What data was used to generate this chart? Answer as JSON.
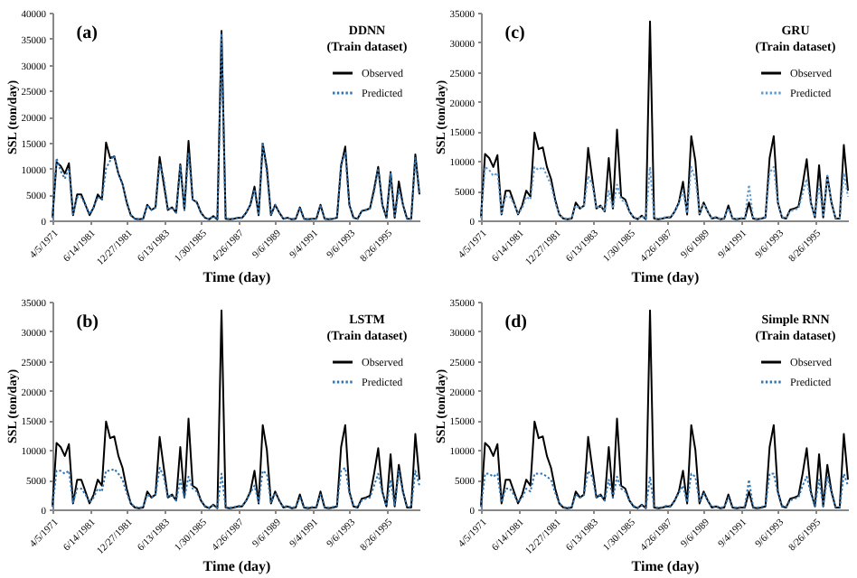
{
  "chart_data": [
    {
      "type": "line",
      "title": "(a)",
      "legend_title": "DDNN\n(Train dataset)",
      "xlabel": "Time (day)",
      "ylabel": "SSL (ton/day)",
      "legend": "top right",
      "ylim": [
        0,
        40000
      ],
      "yticks": [
        0,
        5000,
        10000,
        15000,
        20000,
        25000,
        30000,
        35000,
        40000
      ],
      "categories": [
        "4/5/1971",
        null,
        null,
        null,
        null,
        null,
        null,
        null,
        null,
        "6/14/1981",
        null,
        null,
        null,
        null,
        null,
        null,
        null,
        null,
        "12/27/1981",
        null,
        null,
        null,
        null,
        null,
        null,
        null,
        null,
        "6/13/1983",
        null,
        null,
        null,
        null,
        null,
        null,
        null,
        null,
        "1/30/1985",
        null,
        null,
        null,
        null,
        null,
        null,
        null,
        null,
        "4/26/1987",
        null,
        null,
        null,
        null,
        null,
        null,
        null,
        null,
        "9/6/1989",
        null,
        null,
        null,
        null,
        null,
        null,
        null,
        null,
        "9/4/1991",
        null,
        null,
        null,
        null,
        null,
        null,
        null,
        null,
        "9/6/1993",
        null,
        null,
        null,
        null,
        null,
        null,
        null,
        null,
        "8/26/1995",
        null,
        null,
        null,
        null,
        null,
        null,
        null,
        null
      ],
      "series": [
        {
          "name": "Observed",
          "color": "#000000",
          "line_style": "solid",
          "values": [
            500,
            11200,
            10500,
            9000,
            11000,
            1000,
            5000,
            5000,
            3000,
            1000,
            2500,
            5000,
            4000,
            15000,
            12000,
            12300,
            9000,
            7000,
            3500,
            1000,
            300,
            200,
            300,
            3000,
            2000,
            2500,
            12200,
            7000,
            2000,
            2500,
            1500,
            10800,
            2000,
            15300,
            4000,
            3500,
            1500,
            500,
            200,
            800,
            200,
            36500,
            300,
            200,
            300,
            500,
            500,
            1500,
            3000,
            6500,
            1000,
            14800,
            10000,
            1000,
            3000,
            1500,
            300,
            500,
            200,
            300,
            2500,
            300,
            200,
            300,
            300,
            3000,
            300,
            200,
            300,
            500,
            10500,
            14200,
            3000,
            500,
            300,
            1800,
            2000,
            2300,
            6000,
            10300,
            3000,
            500,
            9300,
            500,
            7500,
            3000,
            300,
            300,
            12700,
            5000
          ]
        },
        {
          "name": "Predicted",
          "color": "#2e75b6",
          "line_style": "dotted",
          "values": [
            500,
            12000,
            9500,
            8000,
            10000,
            1200,
            4500,
            4500,
            3000,
            1200,
            2500,
            4500,
            4000,
            10000,
            11500,
            12500,
            9000,
            7000,
            3500,
            1000,
            300,
            200,
            300,
            3000,
            2000,
            2500,
            11000,
            8000,
            2000,
            2500,
            1500,
            10500,
            2000,
            13000,
            4000,
            3500,
            1500,
            500,
            200,
            800,
            200,
            36000,
            300,
            200,
            300,
            500,
            500,
            1500,
            3000,
            6000,
            1000,
            15000,
            9000,
            1000,
            3000,
            1500,
            300,
            500,
            200,
            300,
            2500,
            300,
            200,
            300,
            300,
            3000,
            300,
            200,
            300,
            500,
            11000,
            13000,
            3000,
            500,
            300,
            1800,
            2000,
            2300,
            5500,
            10000,
            3000,
            500,
            9000,
            500,
            6000,
            3000,
            300,
            300,
            12000,
            5000
          ]
        }
      ]
    },
    {
      "type": "line",
      "title": "(c)",
      "legend_title": "GRU\n(Train dataset)",
      "xlabel": "Time (day)",
      "ylabel": "SSL (ton/day)",
      "legend": "top right",
      "ylim": [
        0,
        35000
      ],
      "yticks": [
        0,
        5000,
        10000,
        15000,
        20000,
        25000,
        30000,
        35000
      ],
      "categories": [
        "4/5/1971",
        null,
        null,
        null,
        null,
        null,
        null,
        null,
        null,
        "6/14/1981",
        null,
        null,
        null,
        null,
        null,
        null,
        null,
        null,
        "12/27/1981",
        null,
        null,
        null,
        null,
        null,
        null,
        null,
        null,
        "6/13/1983",
        null,
        null,
        null,
        null,
        null,
        null,
        null,
        null,
        "1/30/1985",
        null,
        null,
        null,
        null,
        null,
        null,
        null,
        null,
        "4/26/1987",
        null,
        null,
        null,
        null,
        null,
        null,
        null,
        null,
        "9/6/1989",
        null,
        null,
        null,
        null,
        null,
        null,
        null,
        null,
        "9/4/1991",
        null,
        null,
        null,
        null,
        null,
        null,
        null,
        null,
        "9/6/1993",
        null,
        null,
        null,
        null,
        null,
        null,
        null,
        null,
        "8/26/1995",
        null,
        null,
        null,
        null,
        null,
        null,
        null,
        null
      ],
      "series": [
        {
          "name": "Observed",
          "color": "#000000",
          "line_style": "solid",
          "values": [
            500,
            11200,
            10500,
            9000,
            11000,
            1000,
            5000,
            5000,
            3000,
            1000,
            2500,
            5000,
            4000,
            14800,
            12000,
            12300,
            9000,
            7000,
            3500,
            1000,
            300,
            200,
            300,
            3000,
            2000,
            2500,
            12200,
            7000,
            2000,
            2500,
            1500,
            10500,
            2000,
            15300,
            4000,
            3500,
            1500,
            500,
            200,
            800,
            200,
            33500,
            300,
            200,
            300,
            500,
            500,
            1500,
            3000,
            6500,
            1000,
            14200,
            10000,
            1000,
            3000,
            1500,
            300,
            500,
            200,
            300,
            2500,
            300,
            200,
            300,
            300,
            3000,
            300,
            200,
            300,
            500,
            10500,
            14200,
            3000,
            500,
            300,
            1800,
            2000,
            2300,
            6000,
            10300,
            3000,
            500,
            9300,
            500,
            7500,
            3000,
            300,
            300,
            12700,
            5000
          ]
        },
        {
          "name": "Predicted",
          "color": "#5b9bd5",
          "line_style": "dotted",
          "values": [
            400,
            9000,
            8500,
            7500,
            8000,
            1200,
            4000,
            4000,
            2800,
            1200,
            2000,
            4000,
            3500,
            9000,
            8500,
            9000,
            7500,
            6000,
            3000,
            1000,
            400,
            300,
            400,
            2500,
            2000,
            2500,
            7500,
            6000,
            2000,
            2500,
            1500,
            5000,
            2000,
            6000,
            3500,
            3000,
            1500,
            600,
            300,
            700,
            300,
            9000,
            400,
            300,
            400,
            600,
            600,
            1500,
            2800,
            5000,
            1200,
            9000,
            7000,
            1200,
            2800,
            1500,
            400,
            600,
            300,
            400,
            2000,
            400,
            300,
            400,
            400,
            6000,
            400,
            300,
            400,
            600,
            8000,
            9000,
            2800,
            600,
            400,
            1500,
            1800,
            2000,
            4500,
            7000,
            2800,
            600,
            6000,
            600,
            7500,
            2800,
            400,
            400,
            8000,
            4000
          ]
        }
      ]
    },
    {
      "type": "line",
      "title": "(b)",
      "legend_title": "LSTM\n(Train dataset)",
      "xlabel": "Time (day)",
      "ylabel": "SSL (ton/day)",
      "legend": "top right",
      "ylim": [
        0,
        35000
      ],
      "yticks": [
        0,
        5000,
        10000,
        15000,
        20000,
        25000,
        30000,
        35000
      ],
      "categories": [
        "4/5/1971",
        null,
        null,
        null,
        null,
        null,
        null,
        null,
        null,
        "6/14/1981",
        null,
        null,
        null,
        null,
        null,
        null,
        null,
        null,
        "12/27/1981",
        null,
        null,
        null,
        null,
        null,
        null,
        null,
        null,
        "6/13/1983",
        null,
        null,
        null,
        null,
        null,
        null,
        null,
        null,
        "1/30/1985",
        null,
        null,
        null,
        null,
        null,
        null,
        null,
        null,
        "4/26/1987",
        null,
        null,
        null,
        null,
        null,
        null,
        null,
        null,
        "9/6/1989",
        null,
        null,
        null,
        null,
        null,
        null,
        null,
        null,
        "9/4/1991",
        null,
        null,
        null,
        null,
        null,
        null,
        null,
        null,
        "9/6/1993",
        null,
        null,
        null,
        null,
        null,
        null,
        null,
        null,
        "8/26/1995",
        null,
        null,
        null,
        null,
        null,
        null,
        null,
        null
      ],
      "series": [
        {
          "name": "Observed",
          "color": "#000000",
          "line_style": "solid",
          "values": [
            500,
            11200,
            10500,
            9000,
            11000,
            1000,
            5000,
            5000,
            3000,
            1000,
            2500,
            5000,
            4000,
            14800,
            12000,
            12300,
            9000,
            7000,
            3500,
            1000,
            300,
            200,
            300,
            3000,
            2000,
            2500,
            12200,
            7000,
            2000,
            2500,
            1500,
            10500,
            2000,
            15300,
            4000,
            3500,
            1500,
            500,
            200,
            800,
            200,
            33500,
            300,
            200,
            300,
            500,
            500,
            1500,
            3000,
            6500,
            1000,
            14200,
            10000,
            1000,
            3000,
            1500,
            300,
            500,
            200,
            300,
            2500,
            300,
            200,
            300,
            300,
            3000,
            300,
            200,
            300,
            500,
            10500,
            14200,
            3000,
            500,
            300,
            1800,
            2000,
            2300,
            6000,
            10300,
            3000,
            500,
            9300,
            500,
            7500,
            3000,
            300,
            300,
            12700,
            5000
          ]
        },
        {
          "name": "Predicted",
          "color": "#2e75b6",
          "line_style": "dotted",
          "values": [
            400,
            6500,
            6500,
            6000,
            6500,
            1200,
            3500,
            3500,
            2500,
            1200,
            2000,
            3500,
            3000,
            6500,
            6500,
            6800,
            6000,
            5000,
            2800,
            1000,
            400,
            300,
            400,
            2500,
            2000,
            2500,
            7000,
            5500,
            2000,
            2500,
            1500,
            5000,
            2000,
            5500,
            3500,
            3000,
            1500,
            600,
            300,
            700,
            300,
            6000,
            400,
            300,
            400,
            600,
            600,
            1500,
            2800,
            4000,
            1200,
            6500,
            6000,
            1200,
            2800,
            1500,
            400,
            600,
            300,
            400,
            2000,
            400,
            300,
            400,
            400,
            2500,
            400,
            300,
            400,
            600,
            6500,
            7000,
            2800,
            600,
            400,
            1500,
            1800,
            2000,
            4000,
            6000,
            2800,
            600,
            5000,
            600,
            6500,
            2800,
            400,
            400,
            6500,
            4000
          ]
        }
      ]
    },
    {
      "type": "line",
      "title": "(d)",
      "legend_title": "Simple RNN\n(Train dataset)",
      "xlabel": "Time (day)",
      "ylabel": "SSL (ton/day)",
      "legend": "top right",
      "ylim": [
        0,
        35000
      ],
      "yticks": [
        0,
        5000,
        10000,
        15000,
        20000,
        25000,
        30000,
        35000
      ],
      "categories": [
        "4/5/1971",
        null,
        null,
        null,
        null,
        null,
        null,
        null,
        null,
        "6/14/1981",
        null,
        null,
        null,
        null,
        null,
        null,
        null,
        null,
        "12/27/1981",
        null,
        null,
        null,
        null,
        null,
        null,
        null,
        null,
        "6/13/1983",
        null,
        null,
        null,
        null,
        null,
        null,
        null,
        null,
        "1/30/1985",
        null,
        null,
        null,
        null,
        null,
        null,
        null,
        null,
        "4/26/1987",
        null,
        null,
        null,
        null,
        null,
        null,
        null,
        null,
        "9/6/1989",
        null,
        null,
        null,
        null,
        null,
        null,
        null,
        null,
        "9/4/1991",
        null,
        null,
        null,
        null,
        null,
        null,
        null,
        null,
        "9/6/1993",
        null,
        null,
        null,
        null,
        null,
        null,
        null,
        null,
        "8/26/1995",
        null,
        null,
        null,
        null,
        null,
        null,
        null,
        null
      ],
      "series": [
        {
          "name": "Observed",
          "color": "#000000",
          "line_style": "solid",
          "values": [
            500,
            11200,
            10500,
            9000,
            11000,
            1000,
            5000,
            5000,
            3000,
            1000,
            2500,
            5000,
            4000,
            14800,
            12000,
            12300,
            9000,
            7000,
            3500,
            1000,
            300,
            200,
            300,
            3000,
            2000,
            2500,
            12200,
            7000,
            2000,
            2500,
            1500,
            10500,
            2000,
            15300,
            4000,
            3500,
            1500,
            500,
            200,
            800,
            200,
            33500,
            300,
            200,
            300,
            500,
            500,
            1500,
            3000,
            6500,
            1000,
            14200,
            10000,
            1000,
            3000,
            1500,
            300,
            500,
            200,
            300,
            2500,
            300,
            200,
            300,
            300,
            3000,
            300,
            200,
            300,
            500,
            10500,
            14200,
            3000,
            500,
            300,
            1800,
            2000,
            2300,
            6000,
            10300,
            3000,
            500,
            9300,
            500,
            7500,
            3000,
            300,
            300,
            12700,
            5000
          ]
        },
        {
          "name": "Predicted",
          "color": "#2e75b6",
          "line_style": "dotted",
          "values": [
            400,
            6000,
            6000,
            5500,
            6000,
            1200,
            3500,
            3500,
            2500,
            1200,
            2000,
            3500,
            3000,
            6000,
            6000,
            6000,
            5500,
            5000,
            2800,
            1000,
            400,
            300,
            400,
            2500,
            2000,
            2500,
            6500,
            5500,
            2000,
            2500,
            1500,
            5000,
            2000,
            5500,
            3500,
            3000,
            1500,
            600,
            300,
            700,
            300,
            5500,
            400,
            300,
            400,
            600,
            600,
            1500,
            2800,
            4000,
            1200,
            6000,
            5500,
            1200,
            2800,
            1500,
            400,
            600,
            300,
            400,
            2000,
            400,
            300,
            400,
            400,
            5000,
            400,
            300,
            400,
            600,
            6000,
            6000,
            2800,
            600,
            400,
            1500,
            1800,
            2000,
            4000,
            5500,
            2800,
            600,
            5000,
            600,
            5500,
            2800,
            400,
            400,
            6000,
            4000
          ]
        }
      ]
    }
  ]
}
